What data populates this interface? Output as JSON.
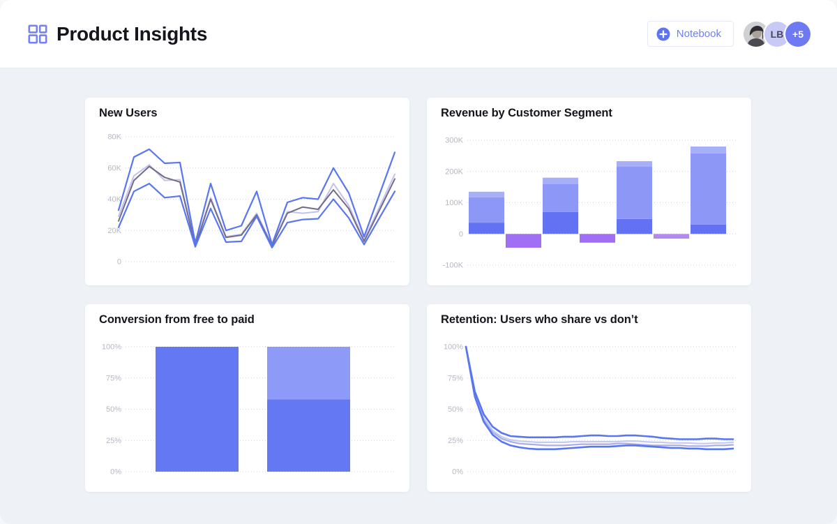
{
  "header": {
    "title": "Product Insights",
    "notebook_label": "Notebook",
    "avatar_lb": "LB",
    "avatar_overflow": "+5"
  },
  "colors": {
    "accent_blue": "#6577F3",
    "line_blue": "#5876F1",
    "line_gray_purple": "#716B86",
    "line_lavender": "#C2C1EE",
    "bar_blue_dark": "#6372F3",
    "bar_blue_mid": "#8C97F6",
    "bar_blue_light": "#A6AFF8",
    "bar_purple_negative": "#A16FF4",
    "page_background": "#EEF1F6",
    "card_background": "#FFFFFF",
    "axis_label": "#B4B8C5",
    "gridline": "#CBCFDA"
  },
  "chart_data": [
    {
      "id": "new-users",
      "type": "line",
      "title": "New Users",
      "ylabel": "",
      "ylim": [
        0,
        80
      ],
      "grid": true,
      "legend": "none",
      "y_ticks": [
        {
          "label": "80K",
          "value": 80
        },
        {
          "label": "60K",
          "value": 60
        },
        {
          "label": "40K",
          "value": 40
        },
        {
          "label": "20K",
          "value": 20
        },
        {
          "label": "0",
          "value": 0
        }
      ],
      "unit": "thousands of users",
      "series": [
        {
          "color": "#C2C1EE",
          "stroke_width": 2,
          "values": [
            29,
            55,
            62,
            52,
            52.5,
            11,
            41,
            16,
            17.5,
            31,
            10.5,
            32,
            31,
            32,
            50,
            36,
            14,
            35,
            56
          ]
        },
        {
          "color": "#716B86",
          "stroke_width": 2,
          "values": [
            26,
            52,
            61,
            54,
            51,
            10,
            40,
            15.5,
            17,
            30,
            10,
            31,
            35,
            33.5,
            46,
            34,
            13,
            33,
            53
          ]
        },
        {
          "color": "#5876F1",
          "stroke_width": 2.2,
          "values": [
            33,
            67,
            72,
            63,
            63.5,
            12,
            50,
            20,
            23,
            45,
            11,
            38,
            41,
            40,
            60,
            44,
            16,
            43,
            70
          ]
        },
        {
          "color": "#5876F1",
          "stroke_width": 2.2,
          "values": [
            22,
            45,
            50,
            41,
            42,
            9.5,
            34,
            12.5,
            13,
            29,
            9,
            25,
            27,
            27.5,
            40,
            28,
            11,
            28,
            45
          ]
        }
      ]
    },
    {
      "id": "revenue",
      "type": "bar",
      "title": "Revenue by Customer Segment",
      "ylabel": "",
      "ylim": [
        -100,
        300
      ],
      "grid": true,
      "legend": "none",
      "y_ticks": [
        {
          "label": "300K",
          "value": 300
        },
        {
          "label": "200K",
          "value": 200
        },
        {
          "label": "100K",
          "value": 100
        },
        {
          "label": "0",
          "value": 0
        },
        {
          "label": "-100K",
          "value": -100
        }
      ],
      "unit": "thousands",
      "bars": [
        {
          "values": [
            36,
            81,
            18
          ],
          "colors": [
            "#6372F3",
            "#8C97F6",
            "#A6AFF8"
          ]
        },
        {
          "values": [
            -44
          ],
          "colors": [
            "#A16FF4"
          ]
        },
        {
          "values": [
            70,
            90,
            20
          ],
          "colors": [
            "#6372F3",
            "#8C97F6",
            "#A6AFF8"
          ]
        },
        {
          "values": [
            -28
          ],
          "colors": [
            "#A16FF4"
          ]
        },
        {
          "values": [
            48,
            167,
            18
          ],
          "colors": [
            "#6372F3",
            "#8C97F6",
            "#A6AFF8"
          ]
        },
        {
          "values": [
            -15
          ],
          "colors": [
            "#B488F4"
          ]
        },
        {
          "values": [
            30,
            228,
            22
          ],
          "colors": [
            "#6372F3",
            "#8C97F6",
            "#A6AFF8"
          ]
        }
      ]
    },
    {
      "id": "conversion",
      "type": "bar",
      "title": "Conversion from free to paid",
      "ylabel": "",
      "ylim": [
        0,
        100
      ],
      "grid": true,
      "legend": "none",
      "y_ticks": [
        {
          "label": "100%",
          "value": 100
        },
        {
          "label": "75%",
          "value": 75
        },
        {
          "label": "50%",
          "value": 50
        },
        {
          "label": "25%",
          "value": 25
        },
        {
          "label": "0%",
          "value": 0
        }
      ],
      "unit": "percent",
      "bars": [
        {
          "values": [
            100
          ],
          "colors": [
            "#6478F3"
          ]
        },
        {
          "values": [
            58,
            42
          ],
          "colors": [
            "#6478F3",
            "#8D9AF7"
          ]
        }
      ]
    },
    {
      "id": "retention",
      "type": "line",
      "title": "Retention: Users who share vs don’t",
      "ylabel": "",
      "ylim": [
        0,
        100
      ],
      "grid": true,
      "legend": "none",
      "y_ticks": [
        {
          "label": "100%",
          "value": 100
        },
        {
          "label": "75%",
          "value": 75
        },
        {
          "label": "50%",
          "value": 50
        },
        {
          "label": "25%",
          "value": 25
        },
        {
          "label": "0%",
          "value": 0
        }
      ],
      "unit": "percent",
      "series": [
        {
          "color": "#C6CAF3",
          "stroke_width": 2.2,
          "values": [
            100,
            62,
            43,
            33,
            28,
            25.5,
            24.5,
            24,
            23.5,
            23.5,
            23.5,
            23.5,
            24,
            24,
            24,
            24,
            24,
            24,
            24.5,
            24.5,
            24,
            23.5,
            23.5,
            23,
            23,
            23,
            22.5,
            22.5,
            23,
            23,
            23.5
          ]
        },
        {
          "color": "#A9AEE9",
          "stroke_width": 2.2,
          "values": [
            100,
            61,
            41.5,
            31.5,
            26.5,
            24,
            22.5,
            22,
            21.5,
            21,
            21,
            21,
            21.5,
            22,
            22,
            22,
            22,
            22.5,
            22.5,
            22,
            21.5,
            21,
            21,
            21,
            21,
            20.5,
            20.5,
            20.5,
            21,
            21,
            21.5
          ]
        },
        {
          "color": "#5876F1",
          "stroke_width": 2.6,
          "values": [
            100,
            64,
            46,
            36,
            31,
            28.5,
            28,
            27.5,
            27.5,
            27.5,
            27.5,
            28,
            28,
            28.5,
            29,
            29,
            28.5,
            28.5,
            29,
            29,
            28.5,
            28,
            27,
            26.5,
            26,
            26,
            26,
            26.5,
            26.5,
            26,
            26
          ]
        },
        {
          "color": "#5876F1",
          "stroke_width": 2.6,
          "values": [
            100,
            60,
            40,
            29.5,
            24,
            21,
            19.5,
            18.5,
            18,
            18,
            18,
            18.5,
            19,
            19.5,
            20,
            20,
            20,
            20.5,
            21,
            21,
            20.5,
            20,
            19.5,
            19,
            19,
            18.5,
            18.5,
            18,
            18,
            18,
            18.5
          ]
        }
      ]
    }
  ]
}
